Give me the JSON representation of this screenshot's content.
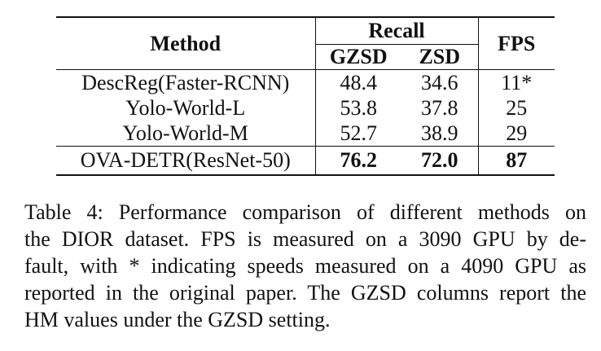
{
  "table": {
    "header": {
      "method": "Method",
      "recall": "Recall",
      "gzsd": "GZSD",
      "zsd": "ZSD",
      "fps": "FPS"
    },
    "rows": [
      {
        "method": "DescReg(Faster-RCNN)",
        "gzsd": "48.4",
        "zsd": "34.6",
        "fps": "11*"
      },
      {
        "method": "Yolo-World-L",
        "gzsd": "53.8",
        "zsd": "37.8",
        "fps": "25"
      },
      {
        "method": "Yolo-World-M",
        "gzsd": "52.7",
        "zsd": "38.9",
        "fps": "29"
      },
      {
        "method": "OVA-DETR(ResNet-50)",
        "gzsd": "76.2",
        "zsd": "72.0",
        "fps": "87"
      }
    ]
  },
  "caption": {
    "lines": [
      "Table 4: Performance comparison of different methods on",
      "the DIOR dataset. FPS is measured on a 3090 GPU by de-",
      "fault, with * indicating speeds measured on a 4090 GPU as",
      "reported in the original paper. The GZSD columns report the",
      "HM values under the GZSD setting."
    ]
  }
}
